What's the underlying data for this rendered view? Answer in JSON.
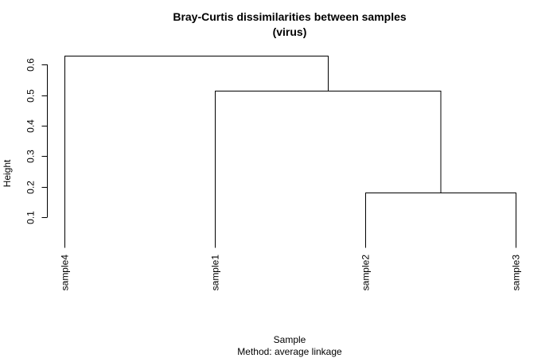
{
  "chart_data": {
    "type": "dendrogram",
    "title": "Bray-Curtis dissimilarities between samples",
    "subtitle": "(virus)",
    "xlabel": "Sample",
    "xlabel_sub": "Method: average linkage",
    "ylabel": "Height",
    "yticks": [
      0.1,
      0.2,
      0.3,
      0.4,
      0.5,
      0.6
    ],
    "ylim": [
      0.0,
      0.65
    ],
    "leaves": [
      "sample4",
      "sample1",
      "sample2",
      "sample3"
    ],
    "merges": [
      {
        "left": "sample2",
        "right": "sample3",
        "height": 0.18
      },
      {
        "left": "sample1",
        "right": "sample2+sample3",
        "height": 0.515
      },
      {
        "left": "sample4",
        "right": "sample1+sample2+sample3",
        "height": 0.628
      }
    ]
  }
}
